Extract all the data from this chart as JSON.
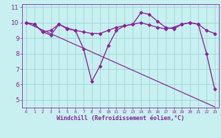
{
  "xlabel": "Windchill (Refroidissement éolien,°C)",
  "xlim": [
    -0.5,
    23.5
  ],
  "ylim": [
    4.5,
    11.2
  ],
  "yticks": [
    5,
    6,
    7,
    8,
    9,
    10,
    11
  ],
  "ytick_labels": [
    "5",
    "6",
    "7",
    "8",
    "9",
    "10",
    "11"
  ],
  "xticks": [
    0,
    1,
    2,
    3,
    4,
    5,
    6,
    7,
    8,
    9,
    10,
    11,
    12,
    13,
    14,
    15,
    16,
    17,
    18,
    19,
    20,
    21,
    22,
    23
  ],
  "bg_color": "#c8f0f0",
  "grid_color": "#a0d8d8",
  "line_color": "#882299",
  "series": [
    {
      "x": [
        0,
        1,
        2,
        3,
        4,
        5,
        6,
        7,
        8,
        9,
        10,
        11,
        12,
        13,
        14,
        15,
        16,
        17,
        18,
        19,
        20,
        21,
        22,
        23
      ],
      "y": [
        10.0,
        9.9,
        9.4,
        9.2,
        9.9,
        9.6,
        9.5,
        8.3,
        6.2,
        7.2,
        8.5,
        9.5,
        9.8,
        9.9,
        10.65,
        10.55,
        10.1,
        9.7,
        9.6,
        9.9,
        10.0,
        9.9,
        8.0,
        5.7
      ],
      "marker": "D",
      "lw": 1.0
    },
    {
      "x": [
        0,
        1,
        2,
        3,
        4,
        5,
        6,
        7,
        8,
        9,
        10,
        11,
        12,
        13,
        14,
        15,
        16,
        17,
        18,
        19,
        20,
        21,
        22,
        23
      ],
      "y": [
        10.0,
        9.9,
        9.4,
        9.5,
        9.9,
        9.65,
        9.5,
        9.4,
        9.3,
        9.3,
        9.5,
        9.7,
        9.8,
        9.9,
        10.0,
        9.85,
        9.7,
        9.6,
        9.7,
        9.9,
        10.0,
        9.9,
        9.5,
        9.3
      ],
      "marker": "D",
      "lw": 1.0
    },
    {
      "x": [
        0,
        23
      ],
      "y": [
        10.0,
        4.55
      ],
      "marker": null,
      "lw": 0.9
    }
  ]
}
